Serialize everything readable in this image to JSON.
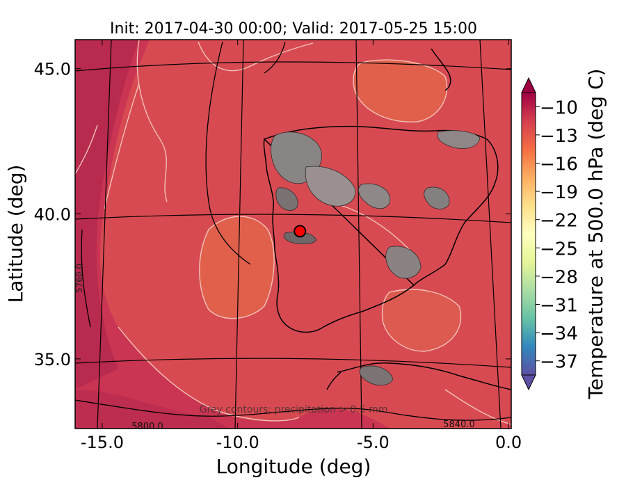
{
  "title": "Init: 2017-04-30 00:00; Valid: 2017-05-25 15:00",
  "xlabel": "Longitude (deg)",
  "ylabel": "Latitude (deg)",
  "x_ticks": [
    "-15.0",
    "-10.0",
    "-5.0",
    "0.0"
  ],
  "y_ticks": [
    "45.0",
    "40.0",
    "35.0"
  ],
  "x_tick_values": [
    -15.0,
    -10.0,
    -5.0,
    0.0
  ],
  "y_tick_values": [
    45.0,
    40.0,
    35.0
  ],
  "xlim": [
    -16.0,
    0.1
  ],
  "ylim": [
    32.6,
    46.0
  ],
  "colorbar": {
    "label": "Temperature at 500.0 hPa (deg C)",
    "ticks": [
      "−10",
      "−13",
      "−16",
      "−19",
      "−22",
      "−25",
      "−28",
      "−31",
      "−34",
      "−37"
    ],
    "tick_values": [
      -10,
      -13,
      -16,
      -19,
      -22,
      -25,
      -28,
      -31,
      -34,
      -37
    ],
    "range": [
      -38.5,
      -8.5
    ],
    "extend": "both",
    "colormap": "Spectral"
  },
  "contour_labels": [
    "5760.0",
    "5800.0",
    "5840.0"
  ],
  "annotation": "Grey contours: precipitation > 0.5 mm",
  "marker": {
    "lon": -7.7,
    "lat": 39.4,
    "color": "#ff0000"
  },
  "colors": {
    "warm_bg": "#c42f4f",
    "mid_red": "#d54053",
    "orange": "#e86a4a",
    "isotherm": "#f2c2b8",
    "coast": "#000000",
    "precip": "#8a8585"
  }
}
